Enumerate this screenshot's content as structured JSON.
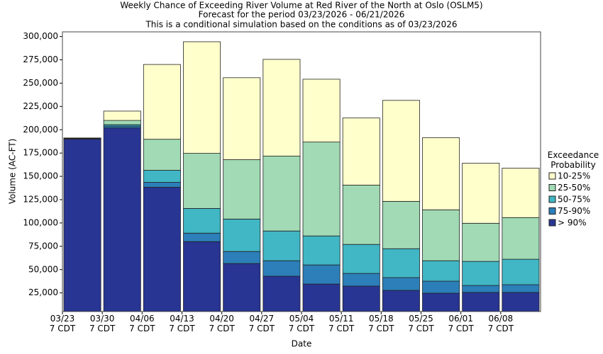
{
  "chart_data": {
    "type": "stacked_bar",
    "title": "Weekly Chance of Exceeding River Volume at Red River of the North at Oslo (OSLM5)",
    "subtitle": "Forecast for the period 03/23/2026 - 06/21/2026",
    "note": "This is a conditional simulation based on the conditions as of 03/23/2026",
    "x_label": "Date",
    "y_label": "Volume (AC-FT)",
    "legend_title": "Exceedance\nProbability",
    "categories": [
      "03/23\n7 CDT",
      "03/30\n7 CDT",
      "04/06\n7 CDT",
      "04/13\n7 CDT",
      "04/20\n7 CDT",
      "04/27\n7 CDT",
      "05/04\n7 CDT",
      "05/11\n7 CDT",
      "05/18\n7 CDT",
      "05/25\n7 CDT",
      "06/01\n7 CDT",
      "06/08\n7 CDT"
    ],
    "series": [
      {
        "name": "> 90%",
        "color": "#283593",
        "values": [
          185000,
          197000,
          133300,
          75000,
          51500,
          37900,
          29500,
          27300,
          22700,
          19700,
          20500,
          20500
        ]
      },
      {
        "name": "75-90%",
        "color": "#2c7fb8",
        "values": [
          400,
          2000,
          5300,
          9100,
          12900,
          16600,
          20500,
          13600,
          13700,
          12900,
          7500,
          8300
        ]
      },
      {
        "name": "50-75%",
        "color": "#41b6c4",
        "values": [
          300,
          1500,
          12900,
          26500,
          34800,
          31900,
          31100,
          31100,
          31000,
          21900,
          25800,
          27300
        ]
      },
      {
        "name": "25-50%",
        "color": "#a1dab4",
        "values": [
          300,
          4500,
          33300,
          59100,
          63700,
          80300,
          100700,
          63600,
          50800,
          54600,
          40900,
          44700
        ]
      },
      {
        "name": "10-25%",
        "color": "#ffffcc",
        "values": [
          200,
          10000,
          80200,
          119700,
          87900,
          103800,
          67400,
          72000,
          108300,
          77300,
          64400,
          53000
        ]
      }
    ],
    "ylim": [
      5000,
      305000
    ],
    "yticks": [
      {
        "value": 25000,
        "label": "25,000"
      },
      {
        "value": 50000,
        "label": "50,000"
      },
      {
        "value": 75000,
        "label": "75,000"
      },
      {
        "value": 100000,
        "label": "100,000"
      },
      {
        "value": 125000,
        "label": "125,000"
      },
      {
        "value": 150000,
        "label": "150,000"
      },
      {
        "value": 175000,
        "label": "175,000"
      },
      {
        "value": 200000,
        "label": "200,000"
      },
      {
        "value": 225000,
        "label": "225,000"
      },
      {
        "value": 250000,
        "label": "250,000"
      },
      {
        "value": 275000,
        "label": "275,000"
      },
      {
        "value": 300000,
        "label": "300,000"
      }
    ]
  }
}
